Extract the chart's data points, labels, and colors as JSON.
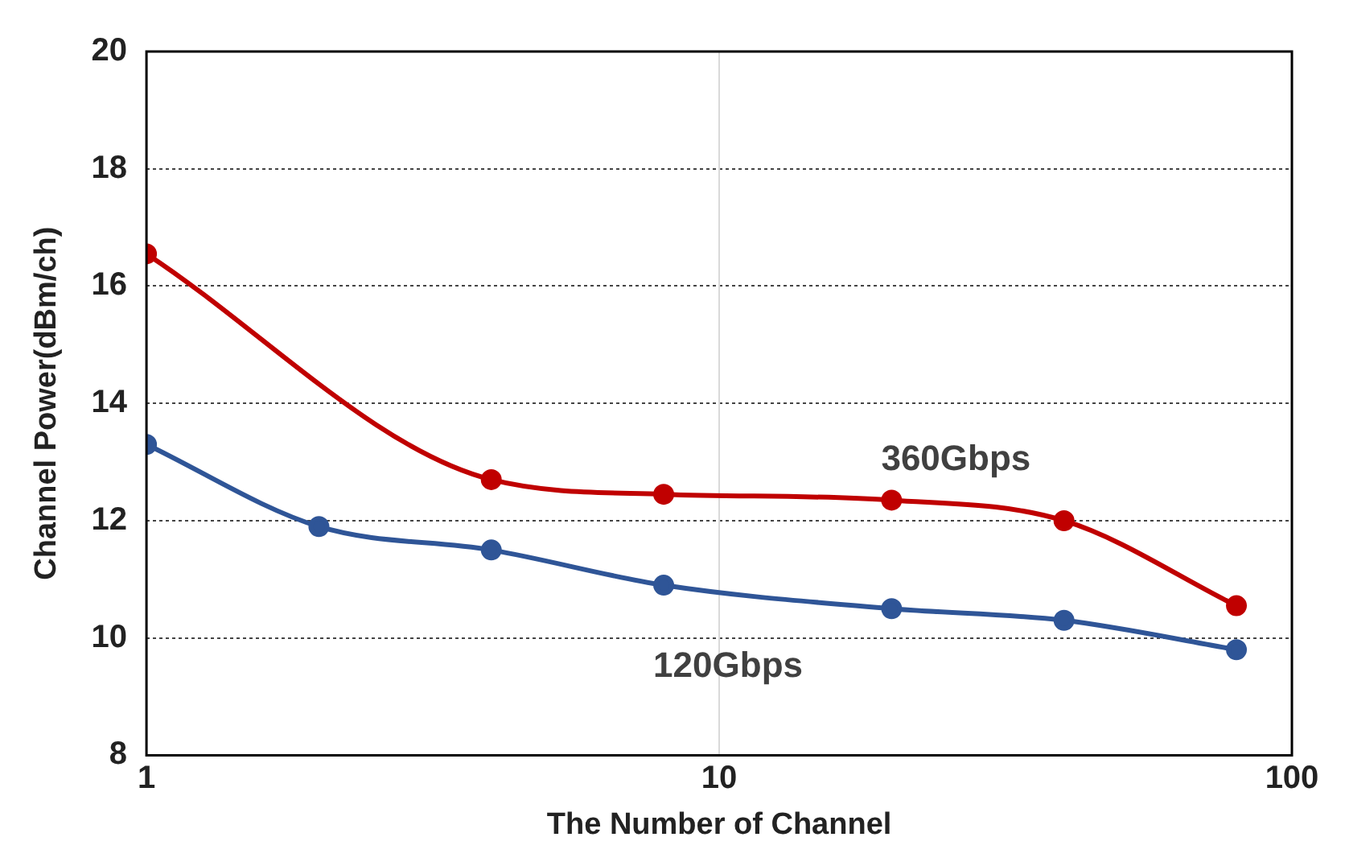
{
  "chart_data": {
    "type": "line",
    "xlabel": "The Number of Channel",
    "ylabel": "Channel Power(dBm/ch)",
    "log": "x",
    "xlim": [
      1,
      100
    ],
    "xticks": [
      1,
      10,
      100
    ],
    "ylim": [
      8,
      20
    ],
    "yticks": [
      8,
      10,
      12,
      14,
      16,
      18,
      20
    ],
    "grid": "y",
    "ref_lines": [
      {
        "axis": "x",
        "value": 10,
        "color": "#d9d9d9"
      }
    ],
    "legend": false,
    "marker": "circle",
    "line_style": "solid",
    "series": [
      {
        "name": "360Gbps",
        "color": "#c00000",
        "x": [
          1,
          4,
          8,
          20,
          40,
          80
        ],
        "values": [
          16.55,
          12.7,
          12.45,
          12.35,
          12.0,
          10.55
        ]
      },
      {
        "name": "120Gbps",
        "color": "#2f5597",
        "x": [
          1,
          2,
          4,
          8,
          20,
          40,
          80
        ],
        "values": [
          13.3,
          11.9,
          11.5,
          10.9,
          10.5,
          10.3,
          9.8
        ]
      }
    ]
  }
}
